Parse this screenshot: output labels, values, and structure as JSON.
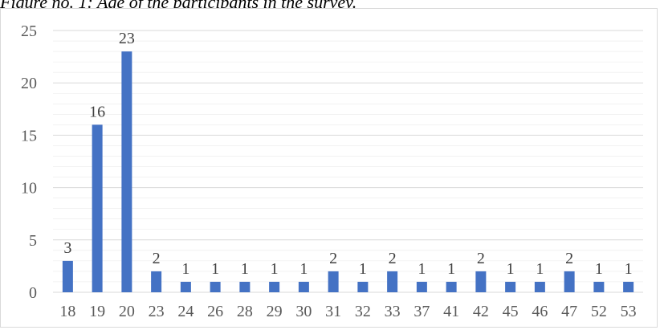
{
  "caption": "Figure no. 1: Age of the participants in the survey.",
  "chart_data": {
    "type": "bar",
    "title": "Figure no. 1: Age of the participants in the survey.",
    "xlabel": "",
    "ylabel": "",
    "categories": [
      "18",
      "19",
      "20",
      "23",
      "24",
      "26",
      "28",
      "29",
      "30",
      "31",
      "32",
      "33",
      "37",
      "41",
      "42",
      "45",
      "46",
      "47",
      "52",
      "53"
    ],
    "values": [
      3,
      16,
      23,
      2,
      1,
      1,
      1,
      1,
      1,
      2,
      1,
      2,
      1,
      1,
      2,
      1,
      1,
      2,
      1,
      1
    ],
    "ylim": [
      0,
      25
    ],
    "yticks": [
      0,
      5,
      10,
      15,
      20,
      25
    ],
    "grid": true,
    "data_labels": true,
    "colors": {
      "bar": "#4472c4",
      "grid": "#d9d9d9",
      "axis": "#d9d9d9"
    }
  }
}
